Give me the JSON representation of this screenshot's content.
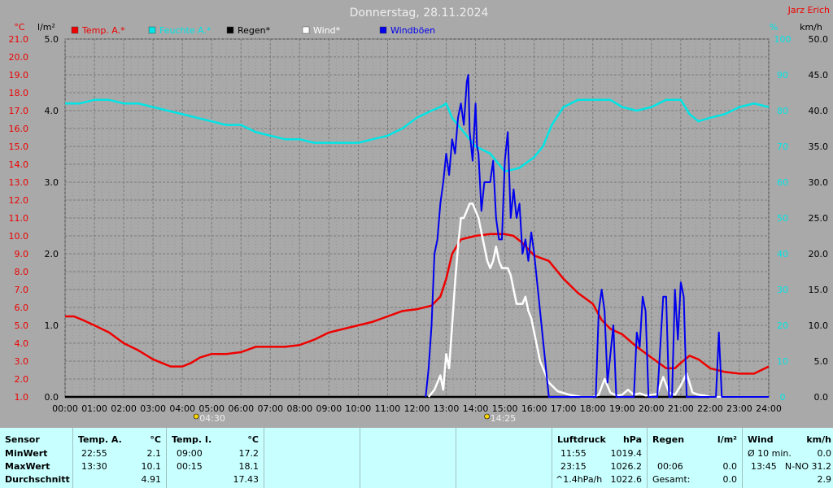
{
  "page": {
    "title": "Donnerstag, 28.11.2024",
    "station": "Jarz Erich"
  },
  "legend": [
    {
      "label": "Temp. A.*",
      "color": "#ee0000"
    },
    {
      "label": "Feuchte A.*",
      "color": "#00e5e5"
    },
    {
      "label": "Regen*",
      "color": "#000000"
    },
    {
      "label": "Wind*",
      "color": "#ffffff"
    },
    {
      "label": "Windböen",
      "color": "#0000ee"
    }
  ],
  "axes": {
    "temp_unit": "°C",
    "rain_unit": "l/m²",
    "hum_unit": "%",
    "wind_unit": "km/h",
    "temp_ticks": [
      "1.0",
      "2.0",
      "3.0",
      "4.0",
      "5.0",
      "6.0",
      "7.0",
      "8.0",
      "9.0",
      "10.0",
      "11.0",
      "12.0",
      "13.0",
      "14.0",
      "15.0",
      "16.0",
      "17.0",
      "18.0",
      "19.0",
      "20.0",
      "21.0"
    ],
    "rain_ticks": [
      "0.0",
      "1.0",
      "2.0",
      "3.0",
      "4.0",
      "5.0"
    ],
    "hum_ticks": [
      "0",
      "10",
      "20",
      "30",
      "40",
      "50",
      "60",
      "70",
      "80",
      "90",
      "100"
    ],
    "wind_ticks": [
      "0.0",
      "5.0",
      "10.0",
      "15.0",
      "20.0",
      "25.0",
      "30.0",
      "35.0",
      "40.0",
      "45.0",
      "50.0"
    ],
    "x_ticks": [
      "00:00",
      "01:00",
      "02:00",
      "03:00",
      "04:00",
      "05:00",
      "06:00",
      "07:00",
      "08:00",
      "09:00",
      "10:00",
      "11:00",
      "12:00",
      "13:00",
      "14:00",
      "15:00",
      "16:00",
      "17:00",
      "18:00",
      "19:00",
      "20:00",
      "21:00",
      "22:00",
      "23:00",
      "24:00"
    ],
    "sunrise": "04:30",
    "sunset": "14:25"
  },
  "chart_data": {
    "type": "line",
    "title": "Donnerstag, 28.11.2024",
    "x_unit": "hour of day",
    "xlim": [
      0,
      24
    ],
    "y_left_temp_lim": [
      1,
      21
    ],
    "y_left_rain_lim": [
      0,
      5
    ],
    "y_right_hum_lim": [
      0,
      100
    ],
    "y_right_wind_lim": [
      0,
      50
    ],
    "grid": true,
    "legend_position": "top",
    "series": [
      {
        "name": "Temp. A.*",
        "axis": "temp",
        "color": "#ee0000",
        "x": [
          0,
          0.3,
          0.6,
          1,
          1.5,
          2,
          2.5,
          3,
          3.3,
          3.6,
          4,
          4.3,
          4.6,
          5,
          5.5,
          6,
          6.5,
          7,
          7.5,
          8,
          8.5,
          9,
          9.5,
          10,
          10.5,
          11,
          11.5,
          12,
          12.5,
          12.8,
          13,
          13.2,
          13.5,
          14,
          14.5,
          15,
          15.3,
          15.6,
          16,
          16.5,
          17,
          17.5,
          18,
          18.3,
          18.6,
          19,
          19.5,
          20,
          20.5,
          20.8,
          21,
          21.3,
          21.6,
          22,
          22.5,
          23,
          23.5,
          24
        ],
        "y": [
          5.5,
          5.5,
          5.3,
          5.0,
          4.6,
          4.0,
          3.6,
          3.1,
          2.9,
          2.7,
          2.7,
          2.9,
          3.2,
          3.4,
          3.4,
          3.5,
          3.8,
          3.8,
          3.8,
          3.9,
          4.2,
          4.6,
          4.8,
          5.0,
          5.2,
          5.5,
          5.8,
          5.9,
          6.1,
          6.6,
          7.6,
          9.0,
          9.8,
          10.0,
          10.1,
          10.1,
          10.0,
          9.6,
          8.9,
          8.6,
          7.6,
          6.8,
          6.2,
          5.3,
          4.8,
          4.5,
          3.8,
          3.2,
          2.6,
          2.6,
          2.9,
          3.3,
          3.1,
          2.6,
          2.4,
          2.3,
          2.3,
          2.7
        ]
      },
      {
        "name": "Feuchte A.*",
        "axis": "hum",
        "color": "#00e5e5",
        "x": [
          0,
          0.5,
          1,
          1.5,
          2,
          2.5,
          3,
          3.5,
          4,
          4.5,
          5,
          5.5,
          6,
          6.5,
          7,
          7.5,
          8,
          8.5,
          9,
          9.5,
          10,
          10.5,
          11,
          11.5,
          12,
          12.5,
          12.8,
          13,
          13.2,
          13.5,
          14,
          14.5,
          15,
          15.5,
          16,
          16.3,
          16.6,
          17,
          17.5,
          18,
          18.3,
          18.6,
          19,
          19.5,
          20,
          20.5,
          21,
          21.3,
          21.6,
          22,
          22.5,
          23,
          23.5,
          24
        ],
        "y": [
          82,
          82,
          83,
          83,
          82,
          82,
          81,
          80,
          79,
          78,
          77,
          76,
          76,
          74,
          73,
          72,
          72,
          71,
          71,
          71,
          71,
          72,
          73,
          75,
          78,
          80,
          81,
          82,
          78,
          75,
          70,
          68,
          63,
          64,
          67,
          70,
          76,
          81,
          83,
          83,
          83,
          83,
          81,
          80,
          81,
          83,
          83,
          79,
          77,
          78,
          79,
          81,
          82,
          81
        ]
      },
      {
        "name": "Regen*",
        "axis": "rain",
        "color": "#000000",
        "x": [
          0,
          24
        ],
        "y": [
          0.0,
          0.0
        ]
      },
      {
        "name": "Wind*",
        "axis": "wind",
        "color": "#ffffff",
        "x": [
          12.4,
          12.6,
          12.8,
          12.9,
          13.0,
          13.1,
          13.2,
          13.3,
          13.4,
          13.5,
          13.6,
          13.7,
          13.8,
          13.9,
          14.0,
          14.1,
          14.2,
          14.3,
          14.4,
          14.5,
          14.6,
          14.7,
          14.8,
          14.9,
          15.0,
          15.1,
          15.2,
          15.3,
          15.4,
          15.5,
          15.6,
          15.7,
          15.8,
          15.9,
          16.0,
          16.1,
          16.2,
          16.3,
          16.5,
          16.8,
          17.2,
          17.6,
          18.0,
          18.2,
          18.4,
          18.6,
          18.8,
          19.0,
          19.2,
          19.4,
          19.6,
          19.8,
          20.0,
          20.2,
          20.4,
          20.6,
          20.8,
          21.0,
          21.2,
          21.4,
          21.6,
          21.8,
          22.0,
          24
        ],
        "y": [
          0,
          1,
          3,
          1,
          6,
          4,
          10,
          16,
          21,
          25,
          25,
          26,
          27,
          27,
          26,
          25,
          23,
          21,
          19,
          18,
          19,
          21,
          19,
          18,
          18,
          18,
          17,
          15,
          13,
          13,
          13,
          14,
          12,
          11,
          9,
          7,
          5,
          4,
          2,
          0.8,
          0.3,
          0,
          0,
          0.3,
          2.5,
          0.6,
          0.2,
          0.3,
          1,
          0.3,
          0.5,
          0.2,
          0.3,
          0.4,
          2.8,
          0.6,
          0.3,
          1.6,
          3.3,
          0.6,
          0.3,
          0.2,
          0,
          0
        ]
      },
      {
        "name": "Windböen",
        "axis": "wind",
        "color": "#0000ee",
        "x": [
          12.3,
          12.4,
          12.5,
          12.6,
          12.7,
          12.8,
          12.9,
          13.0,
          13.1,
          13.2,
          13.3,
          13.4,
          13.5,
          13.6,
          13.7,
          13.75,
          13.8,
          13.9,
          14.0,
          14.05,
          14.1,
          14.2,
          14.3,
          14.4,
          14.5,
          14.6,
          14.7,
          14.8,
          14.9,
          15.0,
          15.1,
          15.2,
          15.3,
          15.4,
          15.5,
          15.6,
          15.7,
          15.8,
          15.9,
          16.0,
          16.1,
          16.2,
          16.3,
          16.5,
          17.0,
          17.5,
          18.0,
          18.1,
          18.2,
          18.3,
          18.4,
          18.5,
          18.6,
          18.7,
          18.8,
          18.9,
          19.0,
          19.2,
          19.4,
          19.5,
          19.6,
          19.7,
          19.8,
          19.9,
          20.0,
          20.2,
          20.4,
          20.5,
          20.6,
          20.7,
          20.8,
          20.9,
          21.0,
          21.1,
          21.2,
          21.3,
          21.4,
          21.6,
          21.8,
          22.0,
          22.2,
          22.3,
          22.4,
          22.5,
          22.6,
          24
        ],
        "y": [
          0,
          4,
          10,
          20,
          22,
          27,
          30,
          34,
          31,
          36,
          34,
          39,
          41,
          38,
          44,
          45,
          37,
          33,
          41,
          35,
          34,
          26,
          30,
          30,
          30,
          33,
          25,
          22,
          22,
          33,
          37,
          25,
          29,
          25,
          27,
          20,
          22,
          19,
          23,
          20,
          16,
          12,
          8,
          0,
          0,
          0,
          0,
          0,
          12,
          15,
          12,
          2,
          6,
          10,
          0,
          0,
          0,
          0,
          0,
          9,
          7,
          14,
          12,
          0,
          0,
          0,
          14,
          14,
          0,
          0,
          15,
          8,
          16,
          14,
          0,
          0,
          0,
          0,
          0,
          0,
          0,
          9,
          0,
          0,
          0,
          0
        ]
      }
    ]
  },
  "stats": {
    "sensor": {
      "header": "Sensor",
      "min": "MinWert",
      "max": "MaxWert",
      "avg": "Durchschnitt"
    },
    "temp_a": {
      "header": "Temp. A.",
      "unit": "°C",
      "min_time": "22:55",
      "min_val": "2.1",
      "max_time": "13:30",
      "max_val": "10.1",
      "avg": "4.91"
    },
    "temp_i": {
      "header": "Temp. I.",
      "unit": "°C",
      "min_time": "09:00",
      "min_val": "17.2",
      "max_time": "00:15",
      "max_val": "18.1",
      "avg": "17.43"
    },
    "pressure": {
      "header": "Luftdruck",
      "unit": "hPa",
      "min_time": "11:55",
      "min_val": "1019.4",
      "max_time": "23:15",
      "max_val": "1026.2",
      "trend": "^1.4hPa/h",
      "avg": "1022.6"
    },
    "rain": {
      "header": "Regen",
      "unit": "l/m²",
      "max_time": "00:06",
      "max_val": "0.0",
      "total_label": "Gesamt:",
      "total": "0.0"
    },
    "wind": {
      "header": "Wind",
      "unit": "km/h",
      "avg10_label": "Ø 10 min.",
      "avg10": "0.0",
      "max_time": "13:45",
      "max_val": "N-NO 31.2",
      "avg": "2.9"
    }
  }
}
